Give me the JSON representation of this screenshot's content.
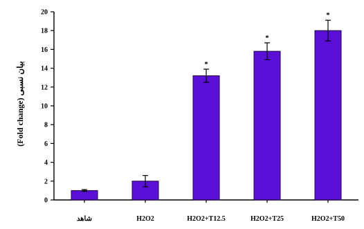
{
  "chart_data": {
    "type": "bar",
    "categories": [
      "شاهد",
      "H2O2",
      "H2O2+T12.5",
      "H2O2+T25",
      "H2O2+T50"
    ],
    "values": [
      1.0,
      2.0,
      13.2,
      15.8,
      18.0
    ],
    "errors": [
      0.1,
      0.6,
      0.7,
      0.9,
      1.1
    ],
    "significance": [
      "",
      "",
      "*",
      "*",
      "*"
    ],
    "title": "",
    "xlabel": "",
    "ylabel": "(Fold change) بیان نسبی",
    "ylim": [
      0,
      20
    ],
    "yticks": [
      0,
      2,
      4,
      6,
      8,
      10,
      12,
      14,
      16,
      18,
      20
    ],
    "grid": false,
    "bar_color": "#5b0fd6",
    "bar_edge_color": "#1a0a3a",
    "error_color": "#000000"
  }
}
